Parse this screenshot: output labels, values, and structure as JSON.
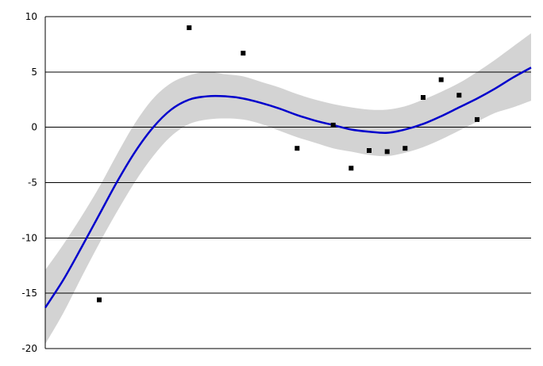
{
  "chart_data": {
    "type": "scatter",
    "title": "",
    "xlabel": "",
    "ylabel": "",
    "xlim": [
      0,
      27
    ],
    "ylim": [
      -20,
      10
    ],
    "yticks": [
      "10",
      "5",
      "0",
      "-5",
      "-10",
      "-15",
      "-20"
    ],
    "ytick_values": [
      10,
      5,
      0,
      -5,
      -10,
      -15,
      -20
    ],
    "grid": "horizontal",
    "colors": {
      "fit_line": "#0000cc",
      "confidence_band": "#d3d3d3",
      "points": "#000000",
      "grid": "#000000"
    },
    "series": [
      {
        "kind": "points",
        "x": [
          3,
          8,
          11,
          14,
          16,
          17,
          18,
          19,
          20,
          21,
          22,
          23,
          24
        ],
        "y": [
          -15.6,
          9.0,
          6.7,
          -1.9,
          0.2,
          -3.7,
          -2.1,
          -2.2,
          -1.9,
          2.7,
          4.3,
          2.9,
          0.7
        ]
      },
      {
        "kind": "fit",
        "x": [
          0,
          1,
          2,
          3,
          4,
          5,
          6,
          7,
          8,
          9,
          10,
          11,
          12,
          13,
          14,
          15,
          16,
          17,
          18,
          19,
          20,
          21,
          22,
          23,
          24,
          25,
          26,
          27
        ],
        "y": [
          -16.3,
          -13.8,
          -10.9,
          -7.9,
          -4.9,
          -2.2,
          0.0,
          1.6,
          2.5,
          2.8,
          2.8,
          2.6,
          2.2,
          1.7,
          1.1,
          0.6,
          0.2,
          -0.2,
          -0.4,
          -0.5,
          -0.2,
          0.3,
          1.0,
          1.8,
          2.6,
          3.5,
          4.5,
          5.4
        ],
        "lower": [
          -19.6,
          -16.8,
          -13.6,
          -10.5,
          -7.6,
          -4.9,
          -2.6,
          -0.8,
          0.3,
          0.7,
          0.8,
          0.7,
          0.3,
          -0.3,
          -0.9,
          -1.4,
          -1.9,
          -2.2,
          -2.5,
          -2.6,
          -2.3,
          -1.8,
          -1.1,
          -0.3,
          0.5,
          1.3,
          1.8,
          2.4
        ],
        "upper": [
          -12.9,
          -10.6,
          -8.1,
          -5.4,
          -2.4,
          0.4,
          2.6,
          4.0,
          4.7,
          5.0,
          4.8,
          4.6,
          4.1,
          3.6,
          3.0,
          2.5,
          2.1,
          1.8,
          1.6,
          1.6,
          1.9,
          2.5,
          3.2,
          4.0,
          5.0,
          6.1,
          7.3,
          8.5
        ]
      }
    ]
  }
}
